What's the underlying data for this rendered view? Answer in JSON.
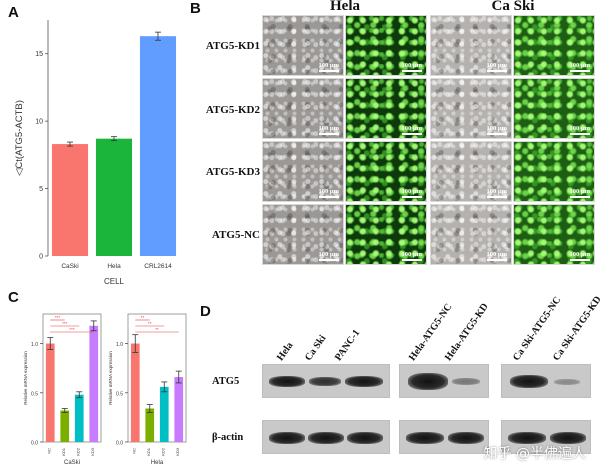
{
  "panels": {
    "a": "A",
    "b": "B",
    "c": "C",
    "d": "D"
  },
  "chart_data": [
    {
      "type": "bar",
      "panel": "A",
      "categories": [
        "CaSki",
        "Hela",
        "CRL2614"
      ],
      "values": [
        8.3,
        8.7,
        16.3
      ],
      "errors": [
        0.15,
        0.15,
        0.3
      ],
      "colors": [
        "#f8766d",
        "#1cb53c",
        "#619cff"
      ],
      "xlabel": "CELL",
      "ylabel": "◁Ct(ATG5-ACTB)",
      "ylim": [
        0,
        17.5
      ],
      "yticks": [
        0,
        5,
        10,
        15
      ],
      "grid": false
    },
    {
      "type": "bar",
      "panel": "C-left",
      "categories": [
        "NC",
        "KD1",
        "KD2",
        "KD3"
      ],
      "values": [
        1.0,
        0.32,
        0.48,
        1.18
      ],
      "errors": [
        0.06,
        0.02,
        0.03,
        0.05
      ],
      "colors": [
        "#f8766d",
        "#7cae00",
        "#00bfc4",
        "#c77cff"
      ],
      "xlabel": "CaSki",
      "ylabel": "Relative mRNA expression",
      "ylim": [
        0,
        1.3
      ],
      "yticks": [
        0.0,
        0.5,
        1.0
      ],
      "significance": [
        "***",
        "***",
        "***"
      ]
    },
    {
      "type": "bar",
      "panel": "C-right",
      "categories": [
        "NC",
        "KD1",
        "KD2",
        "KD3"
      ],
      "values": [
        1.0,
        0.34,
        0.56,
        0.66
      ],
      "errors": [
        0.09,
        0.04,
        0.05,
        0.06
      ],
      "colors": [
        "#f8766d",
        "#7cae00",
        "#00bfc4",
        "#c77cff"
      ],
      "xlabel": "Hela",
      "ylabel": "Relative mRNA expression",
      "ylim": [
        0,
        1.3
      ],
      "yticks": [
        0.0,
        0.5,
        1.0
      ],
      "significance": [
        "**",
        "**",
        "**"
      ]
    }
  ],
  "micro": {
    "columns": [
      "Hela",
      "Ca Ski"
    ],
    "rows": [
      "ATG5-KD1",
      "ATG5-KD2",
      "ATG5-KD3",
      "ATG5-NC"
    ],
    "scale_label": "100 μm"
  },
  "blot": {
    "lanes_group1": [
      "Hela",
      "Ca Ski",
      "PANC-1"
    ],
    "lanes_group2": [
      "Hela-ATG5-NC",
      "Hela-ATG5-KD"
    ],
    "lanes_group3": [
      "Ca Ski-ATG5-NC",
      "Ca Ski-ATG5-KD"
    ],
    "row_atg5": "ATG5",
    "row_actin": "β-actin"
  },
  "watermark": "知乎 @半佛遍人"
}
